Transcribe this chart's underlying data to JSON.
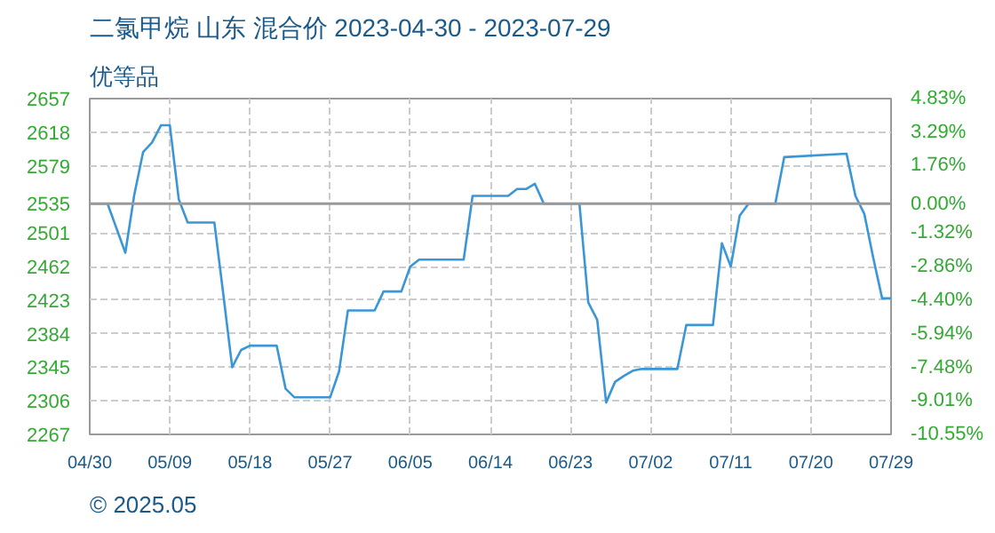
{
  "chart_data": {
    "type": "line",
    "title": "二氯甲烷 山东 混合价 2023-04-30 - 2023-07-29",
    "subtitle": "优等品",
    "annotations": [
      "© 2025.05"
    ],
    "x": [
      "2023-04-30",
      "2023-05-02",
      "2023-05-04",
      "2023-05-05",
      "2023-05-06",
      "2023-05-07",
      "2023-05-08",
      "2023-05-09",
      "2023-05-10",
      "2023-05-11",
      "2023-05-14",
      "2023-05-15",
      "2023-05-16",
      "2023-05-17",
      "2023-05-18",
      "2023-05-21",
      "2023-05-22",
      "2023-05-23",
      "2023-05-27",
      "2023-05-28",
      "2023-05-29",
      "2023-06-01",
      "2023-06-02",
      "2023-06-04",
      "2023-06-05",
      "2023-06-06",
      "2023-06-11",
      "2023-06-12",
      "2023-06-16",
      "2023-06-17",
      "2023-06-18",
      "2023-06-19",
      "2023-06-20",
      "2023-06-24",
      "2023-06-25",
      "2023-06-26",
      "2023-06-27",
      "2023-06-28",
      "2023-06-29",
      "2023-06-30",
      "2023-07-01",
      "2023-07-05",
      "2023-07-06",
      "2023-07-09",
      "2023-07-10",
      "2023-07-11",
      "2023-07-12",
      "2023-07-13",
      "2023-07-16",
      "2023-07-17",
      "2023-07-24",
      "2023-07-25",
      "2023-07-26",
      "2023-07-27",
      "2023-07-28",
      "2023-07-29"
    ],
    "series": [
      {
        "color": "#3a96d6",
        "values": [
          2535,
          2535,
          2478,
          2545,
          2595,
          2606,
          2626,
          2626,
          2540,
          2513,
          2513,
          2430,
          2345,
          2365,
          2370,
          2370,
          2320,
          2310,
          2310,
          2340,
          2411,
          2411,
          2433,
          2433,
          2462,
          2470,
          2470,
          2544,
          2544,
          2552,
          2552,
          2558,
          2535,
          2535,
          2420,
          2400,
          2304,
          2328,
          2335,
          2341,
          2343,
          2343,
          2394,
          2394,
          2489,
          2462,
          2521,
          2535,
          2535,
          2589,
          2593,
          2544,
          2523,
          2472,
          2425,
          2425
        ]
      }
    ],
    "xlim": [
      "2023-04-30",
      "2023-07-29"
    ],
    "xticks": [
      {
        "value": "2023-04-30",
        "label": "04/30"
      },
      {
        "value": "2023-05-09",
        "label": "05/09"
      },
      {
        "value": "2023-05-18",
        "label": "05/18"
      },
      {
        "value": "2023-05-27",
        "label": "05/27"
      },
      {
        "value": "2023-06-05",
        "label": "06/05"
      },
      {
        "value": "2023-06-14",
        "label": "06/14"
      },
      {
        "value": "2023-06-23",
        "label": "06/23"
      },
      {
        "value": "2023-07-02",
        "label": "07/02"
      },
      {
        "value": "2023-07-11",
        "label": "07/11"
      },
      {
        "value": "2023-07-20",
        "label": "07/20"
      },
      {
        "value": "2023-07-29",
        "label": "07/29"
      }
    ],
    "ylim": [
      2267,
      2657
    ],
    "yticks": [
      2267,
      2306,
      2345,
      2384,
      2423,
      2462,
      2501,
      2535,
      2579,
      2618,
      2657
    ],
    "y2lim": [
      -10.55,
      4.83
    ],
    "y2ticks": [
      {
        "value": -10.55,
        "label": "-10.55%"
      },
      {
        "value": -9.01,
        "label": "-9.01%"
      },
      {
        "value": -7.48,
        "label": "-7.48%"
      },
      {
        "value": -5.94,
        "label": "-5.94%"
      },
      {
        "value": -4.4,
        "label": "-4.40%"
      },
      {
        "value": -2.86,
        "label": "-2.86%"
      },
      {
        "value": -1.32,
        "label": "-1.32%"
      },
      {
        "value": 0,
        "label": "0.00%"
      },
      {
        "value": 1.76,
        "label": "1.76%"
      },
      {
        "value": 3.29,
        "label": "3.29%"
      },
      {
        "value": 4.83,
        "label": "4.83%"
      }
    ],
    "ref_lines": [
      {
        "axis": "y",
        "value": 2535,
        "color": "#999999"
      }
    ],
    "grid": true,
    "line_style": "solid",
    "marker": "none"
  }
}
